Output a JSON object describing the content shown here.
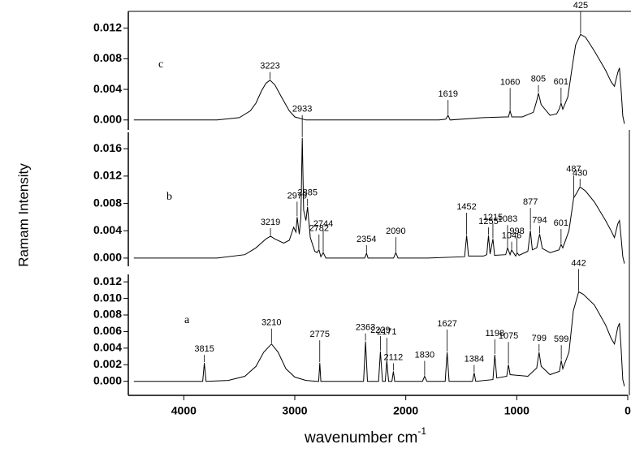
{
  "chart_data": [
    {
      "type": "line",
      "label": "c",
      "color": "#000000",
      "xlim": [
        4500,
        0
      ],
      "ylim": [
        -0.0013,
        0.0142
      ],
      "yticks": [
        {
          "value": 0,
          "label": "0.000"
        },
        {
          "value": 0.004,
          "label": "0.004"
        },
        {
          "value": 0.008,
          "label": "0.008"
        },
        {
          "value": 0.012,
          "label": "0.012"
        }
      ],
      "x": [
        4450,
        4000,
        3700,
        3500,
        3400,
        3350,
        3300,
        3260,
        3223,
        3180,
        3120,
        3050,
        3000,
        2900,
        2500,
        2000,
        1700,
        1640,
        1619,
        1600,
        1300,
        1100,
        1075,
        1060,
        1045,
        950,
        850,
        820,
        805,
        780,
        700,
        640,
        615,
        601,
        585,
        540,
        500,
        470,
        425,
        380,
        300,
        200,
        150,
        120,
        90,
        75,
        60,
        45,
        30
      ],
      "values": [
        0,
        0,
        0,
        0.0003,
        0.0012,
        0.0022,
        0.0038,
        0.0048,
        0.0052,
        0.0046,
        0.003,
        0.0012,
        0.0004,
        0,
        0,
        0,
        0,
        0.0001,
        0.0006,
        0,
        0.0003,
        0.0004,
        0.0004,
        0.0012,
        0.0004,
        0.0004,
        0.001,
        0.0025,
        0.0035,
        0.002,
        0.0006,
        0.0008,
        0.0015,
        0.0022,
        0.0014,
        0.003,
        0.007,
        0.0098,
        0.0112,
        0.0108,
        0.009,
        0.0065,
        0.005,
        0.0044,
        0.0062,
        0.0068,
        0.004,
        0.0005,
        -0.0005
      ],
      "peaks": [
        3223,
        1619,
        1060,
        805,
        601,
        425
      ]
    },
    {
      "type": "line",
      "label": "b",
      "color": "#000000",
      "ylabel": "Ramam Intensity",
      "xlim": [
        4500,
        0
      ],
      "ylim": [
        -0.0012,
        0.0184
      ],
      "yticks": [
        {
          "value": 0,
          "label": "0.000"
        },
        {
          "value": 0.004,
          "label": "0.004"
        },
        {
          "value": 0.008,
          "label": "0.008"
        },
        {
          "value": 0.012,
          "label": "0.012"
        },
        {
          "value": 0.016,
          "label": "0.016"
        }
      ],
      "x": [
        4450,
        3700,
        3450,
        3350,
        3260,
        3219,
        3180,
        3100,
        3050,
        3010,
        2990,
        2979,
        2960,
        2945,
        2933,
        2920,
        2900,
        2885,
        2860,
        2820,
        2800,
        2782,
        2765,
        2744,
        2720,
        2600,
        2370,
        2354,
        2340,
        2110,
        2090,
        2070,
        1800,
        1470,
        1452,
        1435,
        1300,
        1270,
        1255,
        1240,
        1215,
        1200,
        1100,
        1083,
        1060,
        1046,
        1010,
        998,
        980,
        900,
        877,
        860,
        820,
        794,
        770,
        700,
        620,
        601,
        585,
        530,
        487,
        460,
        430,
        380,
        300,
        200,
        150,
        120,
        90,
        75,
        60,
        45,
        30
      ],
      "values": [
        0,
        0,
        0.0005,
        0.0015,
        0.0028,
        0.0032,
        0.0028,
        0.0022,
        0.0026,
        0.0045,
        0.0038,
        0.006,
        0.0035,
        0.006,
        0.0176,
        0.007,
        0.0055,
        0.0075,
        0.003,
        0.001,
        0.0008,
        0.0012,
        0.0002,
        0.0008,
        0,
        0,
        0,
        0.0007,
        0,
        0,
        0.0008,
        0,
        0,
        0.0002,
        0.0033,
        0.0003,
        0.0003,
        0.0005,
        0.0033,
        0.0006,
        0.0028,
        0.0004,
        0.0005,
        0.0015,
        0.0005,
        0.0012,
        0.0003,
        0.0008,
        0.0004,
        0.001,
        0.004,
        0.0012,
        0.0015,
        0.0035,
        0.0014,
        0.0008,
        0.0012,
        0.002,
        0.0015,
        0.004,
        0.0088,
        0.0095,
        0.0104,
        0.0098,
        0.0082,
        0.0055,
        0.004,
        0.003,
        0.005,
        0.0055,
        0.003,
        0.0002,
        -0.0008
      ],
      "peaks": [
        3219,
        2979,
        2933,
        2885,
        2782,
        2744,
        2354,
        2090,
        1452,
        1255,
        1215,
        1083,
        1046,
        998,
        877,
        794,
        601,
        487,
        430
      ]
    },
    {
      "type": "line",
      "label": "a",
      "color": "#000000",
      "xlabel": "wavenumber cm",
      "xlabel_sup": "-1",
      "xlim": [
        4500,
        0
      ],
      "ylim": [
        -0.0017,
        0.0129
      ],
      "xticks": [
        4000,
        3000,
        2000,
        1000,
        0
      ],
      "yticks": [
        {
          "value": 0,
          "label": "0.000"
        },
        {
          "value": 0.002,
          "label": "0.002"
        },
        {
          "value": 0.004,
          "label": "0.004"
        },
        {
          "value": 0.006,
          "label": "0.006"
        },
        {
          "value": 0.008,
          "label": "0.008"
        },
        {
          "value": 0.01,
          "label": "0.010"
        },
        {
          "value": 0.012,
          "label": "0.012"
        }
      ],
      "x": [
        4450,
        3900,
        3830,
        3815,
        3800,
        3600,
        3450,
        3350,
        3280,
        3210,
        3150,
        3080,
        3000,
        2900,
        2800,
        2785,
        2775,
        2765,
        2500,
        2380,
        2363,
        2345,
        2245,
        2229,
        2210,
        2185,
        2171,
        2155,
        2125,
        2112,
        2100,
        1850,
        1830,
        1810,
        1645,
        1627,
        1610,
        1400,
        1384,
        1370,
        1215,
        1198,
        1180,
        1090,
        1075,
        1060,
        900,
        820,
        799,
        780,
        700,
        615,
        599,
        585,
        530,
        490,
        442,
        400,
        300,
        200,
        150,
        120,
        90,
        75,
        60,
        45,
        30
      ],
      "values": [
        0,
        0,
        0,
        0.0022,
        0,
        0.0001,
        0.0006,
        0.0018,
        0.0035,
        0.0045,
        0.0035,
        0.0015,
        0.0005,
        0.0001,
        0,
        0,
        0.0022,
        0,
        0,
        0,
        0.0048,
        0,
        0,
        0.0036,
        0,
        0,
        0.0025,
        0,
        0,
        0.0012,
        0,
        0,
        0.0006,
        0,
        0,
        0.0035,
        0,
        0,
        0.001,
        0,
        0.0002,
        0.0032,
        0.0004,
        0.0006,
        0.002,
        0.0008,
        0.0006,
        0.0016,
        0.0035,
        0.0018,
        0.0008,
        0.0012,
        0.0025,
        0.0015,
        0.0035,
        0.0085,
        0.0108,
        0.0105,
        0.0092,
        0.0068,
        0.0052,
        0.0045,
        0.0065,
        0.007,
        0.004,
        0.0002,
        -0.0006
      ],
      "peaks": [
        3815,
        3210,
        2775,
        2363,
        2229,
        2171,
        2112,
        1830,
        1627,
        1384,
        1198,
        1075,
        799,
        599,
        442
      ]
    }
  ]
}
